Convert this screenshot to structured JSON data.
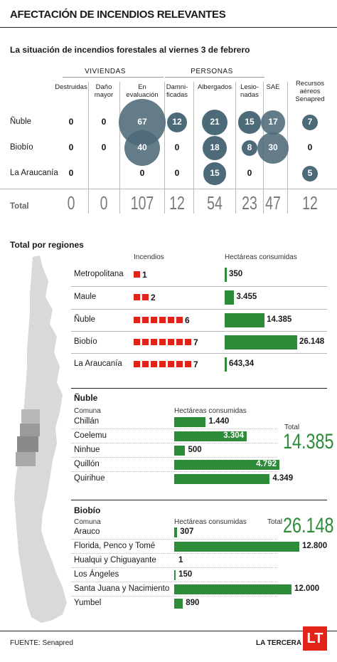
{
  "title": "AFECTACIÓN DE INCENDIOS RELEVANTES",
  "subtitle": "La situación de incendios forestales al viernes 3 de febrero",
  "groups": {
    "viviendas": "VIVIENDAS",
    "personas": "PERSONAS"
  },
  "columns": [
    {
      "key": "destruidas",
      "label": "Destruidas"
    },
    {
      "key": "dano",
      "label": "Daño mayor"
    },
    {
      "key": "evaluacion",
      "label": "En evaluación"
    },
    {
      "key": "damnificadas",
      "label": "Damni- ficadas"
    },
    {
      "key": "albergados",
      "label": "Albergados"
    },
    {
      "key": "lesionadas",
      "label": "Lesio- nadas"
    },
    {
      "key": "sae",
      "label": "SAE"
    },
    {
      "key": "recursos",
      "label": "Recursos aéreos Senapred"
    }
  ],
  "rows": [
    {
      "label": "Ñuble",
      "values": [
        "0",
        "0",
        "67",
        "12",
        "21",
        "15",
        "17",
        "7"
      ]
    },
    {
      "label": "Biobío",
      "values": [
        "0",
        "0",
        "40",
        "0",
        "18",
        "8",
        "30",
        "0"
      ]
    },
    {
      "label": "La Araucanía",
      "values": [
        "0",
        "",
        "0",
        "0",
        "15",
        "0",
        "",
        "5"
      ]
    }
  ],
  "total_row": {
    "label": "Total",
    "values": [
      "0",
      "0",
      "107",
      "12",
      "54",
      "23",
      "47",
      "12"
    ]
  },
  "regions_title": "Total por regiones",
  "regions_headers": {
    "incendios": "Incendios",
    "hectareas": "Hectáreas consumidas"
  },
  "chart_data": [
    {
      "type": "table",
      "title": "La situación de incendios forestales al viernes 3 de febrero",
      "columns": [
        "Destruidas",
        "Daño mayor",
        "En evaluación",
        "Damnificadas",
        "Albergados",
        "Lesionadas",
        "SAE",
        "Recursos aéreos Senapred"
      ],
      "rows": [
        {
          "label": "Ñuble",
          "values": [
            0,
            0,
            67,
            12,
            21,
            15,
            17,
            7
          ]
        },
        {
          "label": "Biobío",
          "values": [
            0,
            0,
            40,
            0,
            18,
            8,
            30,
            0
          ]
        },
        {
          "label": "La Araucanía",
          "values": [
            0,
            null,
            0,
            0,
            15,
            0,
            null,
            5
          ]
        },
        {
          "label": "Total",
          "values": [
            0,
            0,
            107,
            12,
            54,
            23,
            47,
            12
          ]
        }
      ]
    },
    {
      "type": "bar",
      "title": "Total por regiones",
      "categories": [
        "Metropolitana",
        "Maule",
        "Ñuble",
        "Biobío",
        "La Araucanía"
      ],
      "series": [
        {
          "name": "Incendios",
          "values": [
            1,
            2,
            6,
            7,
            7
          ]
        },
        {
          "name": "Hectáreas consumidas",
          "values": [
            350,
            3455,
            14385,
            26148,
            643.34
          ]
        }
      ],
      "value_labels": [
        "350",
        "3.455",
        "14.385",
        "26.148",
        "643,34"
      ]
    },
    {
      "type": "bar",
      "title": "Ñuble",
      "categories": [
        "Chillán",
        "Coelemu",
        "Ninhue",
        "Quillón",
        "Quirihue"
      ],
      "values": [
        1440,
        3304,
        500,
        4792,
        4349
      ],
      "value_labels": [
        "1.440",
        "3.304",
        "500",
        "4.792",
        "4.349"
      ],
      "total": "14.385"
    },
    {
      "type": "bar",
      "title": "Biobío",
      "categories": [
        "Arauco",
        "Florida, Penco y Tomé",
        "Hualqui y Chiguayante",
        "Los Ángeles",
        "Santa Juana y Nacimiento",
        "Yumbel"
      ],
      "values": [
        307,
        12800,
        1,
        150,
        12000,
        890
      ],
      "value_labels": [
        "307",
        "12.800",
        "1",
        "150",
        "12.000",
        "890"
      ],
      "total": "26.148"
    }
  ],
  "nuble": {
    "title": "Ñuble",
    "comuna": "Comuna",
    "hectareas": "Hectáreas consumidas",
    "total_label": "Total",
    "total": "14.385"
  },
  "biobio": {
    "title": "Biobío",
    "comuna": "Comuna",
    "hectareas": "Hectáreas consumidas",
    "total_label": "Total",
    "total": "26.148"
  },
  "footer": {
    "source": "FUENTE: Senapred",
    "brand": "LA TERCERA",
    "logo": "LT"
  },
  "colors": {
    "red": "#e2231a",
    "green": "#2e8b3a",
    "bubble": "#4d6a78"
  }
}
